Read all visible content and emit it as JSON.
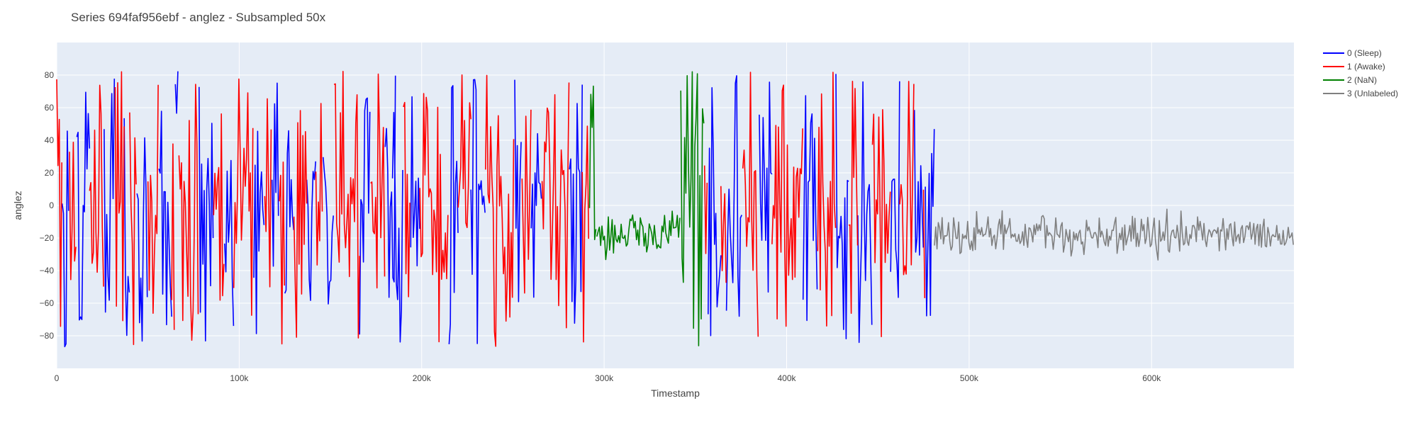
{
  "chart_data": {
    "type": "line",
    "title": "Series 694faf956ebf - anglez - Subsampled 50x",
    "xlabel": "Timestamp",
    "ylabel": "anglez",
    "xlim": [
      0,
      678000
    ],
    "ylim": [
      -100,
      100
    ],
    "x_ticks": [
      {
        "value": 0,
        "label": "0"
      },
      {
        "value": 100000,
        "label": "100k"
      },
      {
        "value": 200000,
        "label": "200k"
      },
      {
        "value": 300000,
        "label": "300k"
      },
      {
        "value": 400000,
        "label": "400k"
      },
      {
        "value": 500000,
        "label": "500k"
      },
      {
        "value": 600000,
        "label": "600k"
      }
    ],
    "y_ticks": [
      {
        "value": -80,
        "label": "−80"
      },
      {
        "value": -60,
        "label": "−60"
      },
      {
        "value": -40,
        "label": "−40"
      },
      {
        "value": -20,
        "label": "−20"
      },
      {
        "value": 0,
        "label": "0"
      },
      {
        "value": 20,
        "label": "20"
      },
      {
        "value": 40,
        "label": "40"
      },
      {
        "value": 60,
        "label": "60"
      },
      {
        "value": 80,
        "label": "80"
      }
    ],
    "grid": true,
    "legend_position": "top-right",
    "sample_step": 700,
    "series": [
      {
        "name": "0 (Sleep)",
        "color": "#0000ff",
        "style": "high",
        "segments": [
          [
            3000,
            7000
          ],
          [
            11000,
            18000
          ],
          [
            26000,
            32000
          ],
          [
            37000,
            40000
          ],
          [
            44000,
            50000
          ],
          [
            56000,
            63000
          ],
          [
            65000,
            67000
          ],
          [
            78000,
            86000
          ],
          [
            92000,
            97000
          ],
          [
            108000,
            114000
          ],
          [
            118000,
            122000
          ],
          [
            125000,
            130000
          ],
          [
            137000,
            142000
          ],
          [
            146000,
            152000
          ],
          [
            166000,
            172000
          ],
          [
            180000,
            186000
          ],
          [
            184000,
            190000
          ],
          [
            194000,
            199000
          ],
          [
            215000,
            220000
          ],
          [
            227000,
            235000
          ],
          [
            251000,
            255000
          ],
          [
            260000,
            266000
          ],
          [
            281000,
            288000
          ],
          [
            357000,
            364000
          ],
          [
            367000,
            376000
          ],
          [
            385000,
            392000
          ],
          [
            409000,
            417000
          ],
          [
            427000,
            434000
          ],
          [
            439000,
            447000
          ],
          [
            457000,
            462000
          ],
          [
            470000,
            475000
          ],
          [
            476000,
            481000
          ]
        ]
      },
      {
        "name": "1 (Awake)",
        "color": "#ff0000",
        "style": "high",
        "segments": [
          [
            0,
            3000
          ],
          [
            7000,
            11000
          ],
          [
            18000,
            26000
          ],
          [
            32000,
            37000
          ],
          [
            40000,
            44000
          ],
          [
            50000,
            56000
          ],
          [
            63000,
            65000
          ],
          [
            67000,
            78000
          ],
          [
            86000,
            92000
          ],
          [
            97000,
            108000
          ],
          [
            114000,
            118000
          ],
          [
            122000,
            125000
          ],
          [
            130000,
            137000
          ],
          [
            142000,
            146000
          ],
          [
            152000,
            166000
          ],
          [
            172000,
            180000
          ],
          [
            190000,
            194000
          ],
          [
            199000,
            215000
          ],
          [
            220000,
            227000
          ],
          [
            235000,
            251000
          ],
          [
            255000,
            260000
          ],
          [
            266000,
            281000
          ],
          [
            288000,
            292000
          ],
          [
            355000,
            357000
          ],
          [
            364000,
            367000
          ],
          [
            376000,
            385000
          ],
          [
            392000,
            409000
          ],
          [
            417000,
            427000
          ],
          [
            434000,
            439000
          ],
          [
            447000,
            457000
          ],
          [
            462000,
            470000
          ],
          [
            475000,
            476000
          ]
        ]
      },
      {
        "name": "2 (NaN)",
        "color": "#008000",
        "style": "mixed",
        "segments": [
          [
            292000,
            296000
          ],
          [
            296000,
            342000
          ],
          [
            342000,
            355000
          ]
        ]
      },
      {
        "name": "3 (Unlabeled)",
        "color": "#808080",
        "style": "low",
        "segments": [
          [
            481000,
            678000
          ]
        ]
      }
    ]
  }
}
